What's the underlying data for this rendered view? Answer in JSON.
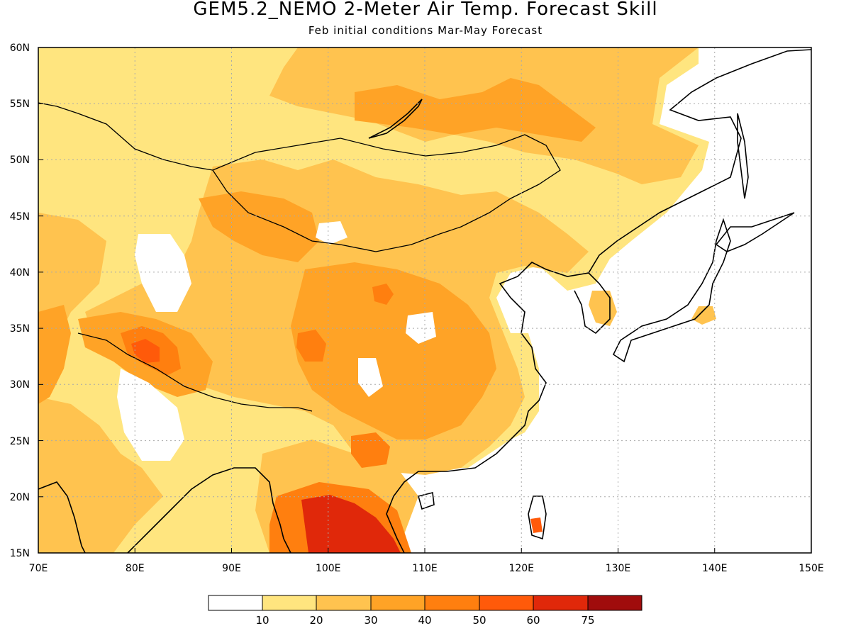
{
  "header": {
    "title": "GEM5.2_NEMO 2-Meter Air Temp. Forecast Skill",
    "subtitle": "Feb initial conditions  Mar-May Forecast"
  },
  "map": {
    "lon_range": [
      70,
      150
    ],
    "lat_range": [
      15,
      60
    ],
    "lon_ticks": [
      "70E",
      "80E",
      "90E",
      "100E",
      "110E",
      "120E",
      "130E",
      "140E",
      "150E"
    ],
    "lat_ticks": [
      "15N",
      "20N",
      "25N",
      "30N",
      "35N",
      "40N",
      "45N",
      "50N",
      "55N",
      "60N"
    ],
    "grid": "dotted",
    "colors": {
      "land_outline": "#000000",
      "grid": "#aaaaaa"
    }
  },
  "colorbar": {
    "levels": [
      "10",
      "20",
      "30",
      "40",
      "50",
      "60",
      "75"
    ],
    "colors": [
      "#ffffff",
      "#ffe57f",
      "#ffc34f",
      "#ffa326",
      "#ff7f0f",
      "#ff5a0a",
      "#e0280a",
      "#a00c0c"
    ]
  }
}
